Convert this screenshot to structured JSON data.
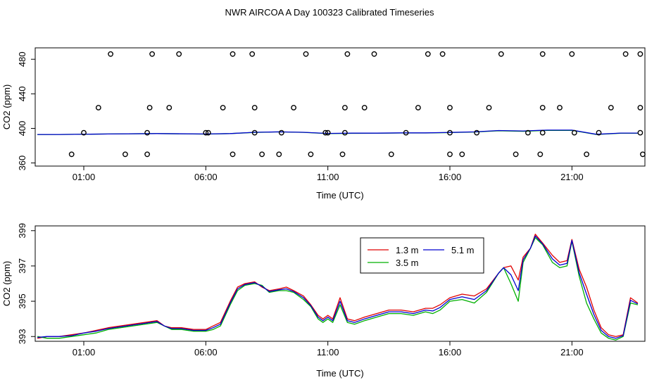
{
  "figure_title": "NWR AIRCOA A  Day 100323  Calibrated Timeseries",
  "colors": {
    "s13": "#e00000",
    "s35": "#00b000",
    "s51": "#0000d0",
    "axis": "#000000"
  },
  "chart_data": [
    {
      "type": "line",
      "id": "top",
      "title": "",
      "xlabel": "Time (UTC)",
      "ylabel": "CO2 (ppm)",
      "xlim": [
        -0.99,
        23.99
      ],
      "ylim": [
        356.4,
        493.2
      ],
      "xticks": [
        1,
        6,
        11,
        16,
        21
      ],
      "xtick_labels": [
        "01:00",
        "06:00",
        "11:00",
        "16:00",
        "21:00"
      ],
      "yticks": [
        360,
        400,
        440,
        480
      ],
      "ytick_labels": [
        "360",
        "400",
        "440",
        "480"
      ],
      "scatter_series": {
        "name": "reference",
        "x": [
          1.0,
          6.0,
          8.0,
          11.0,
          11.7,
          16.0,
          17.1,
          19.8,
          21.1,
          22.1,
          23.8,
          2.7,
          3.6,
          7.1,
          8.3,
          9.0,
          10.3,
          11.6,
          13.6,
          16.0,
          16.5,
          18.7,
          19.7,
          21.6,
          23.9,
          0.5,
          1.6,
          3.7,
          4.5,
          6.7,
          8.0,
          9.6,
          11.7,
          12.5,
          14.7,
          16.0,
          17.6,
          19.8,
          20.5,
          22.6,
          23.8,
          2.1,
          3.8,
          4.9,
          7.1,
          7.9,
          10.1,
          11.8,
          12.9,
          15.1,
          15.7,
          18.1,
          19.8,
          21.0,
          23.2,
          23.8,
          3.6,
          6.1,
          9.1,
          10.9,
          14.2,
          19.2
        ],
        "y": [
          395,
          395,
          395,
          395,
          395,
          395,
          395,
          395,
          395,
          395,
          395,
          370,
          370,
          370,
          370,
          370,
          370,
          370,
          370,
          370,
          370,
          370,
          370,
          370,
          370,
          370,
          424,
          424,
          424,
          424,
          424,
          424,
          424,
          424,
          424,
          424,
          424,
          424,
          424,
          424,
          424,
          486,
          486,
          486,
          486,
          486,
          486,
          486,
          486,
          486,
          486,
          486,
          486,
          486,
          486,
          486,
          395,
          395,
          395,
          395,
          395,
          395
        ]
      },
      "line_series": [
        {
          "name": "5.1 m",
          "color": "#0000d0",
          "x": [
            -0.9,
            0,
            2,
            4,
            6,
            7,
            8,
            9,
            10,
            11,
            12,
            13,
            14,
            15,
            16,
            17,
            18,
            19,
            20,
            21,
            22,
            23,
            23.7
          ],
          "y": [
            393,
            393,
            393.5,
            394,
            393.5,
            394,
            395.5,
            396,
            395.5,
            394.2,
            394.5,
            394.5,
            394.8,
            394.8,
            395.3,
            396,
            397.5,
            397,
            398,
            398,
            393.2,
            394.6,
            394.6
          ]
        },
        {
          "name": "3.5 m",
          "color": "#00b000",
          "x": [
            -0.9,
            0,
            2,
            4,
            6,
            7,
            8,
            9,
            10,
            11,
            12,
            13,
            14,
            15,
            16,
            17,
            18,
            19,
            20,
            21,
            22,
            23,
            23.7
          ],
          "y": [
            392.9,
            393,
            393.5,
            394,
            393.4,
            394,
            395.3,
            396,
            395.4,
            394,
            394.3,
            394.4,
            394.7,
            394.7,
            395.2,
            395.8,
            397.3,
            396.6,
            397.7,
            397.8,
            393,
            394.4,
            394.4
          ]
        }
      ]
    },
    {
      "type": "line",
      "id": "bottom",
      "title": "",
      "xlabel": "Time (UTC)",
      "ylabel": "CO2 (ppm)",
      "xlim": [
        -0.99,
        23.99
      ],
      "ylim": [
        392.73,
        399.27
      ],
      "xticks": [
        1,
        6,
        11,
        16,
        21
      ],
      "xtick_labels": [
        "01:00",
        "06:00",
        "11:00",
        "16:00",
        "21:00"
      ],
      "yticks": [
        393,
        395,
        397,
        399
      ],
      "ytick_labels": [
        "393",
        "395",
        "397",
        "399"
      ],
      "legend": {
        "location": "upper-middle",
        "entries": [
          "1.3 m",
          "5.1 m",
          "3.5 m"
        ]
      },
      "series": [
        {
          "name": "1.3 m",
          "color": "#e00000",
          "x": [
            -0.9,
            -0.5,
            0,
            0.5,
            1,
            1.5,
            2,
            2.5,
            3,
            3.5,
            4,
            4.3,
            4.6,
            5,
            5.5,
            6,
            6.3,
            6.6,
            7,
            7.3,
            7.6,
            8,
            8.3,
            8.6,
            9,
            9.3,
            9.6,
            10,
            10.3,
            10.6,
            10.8,
            11.0,
            11.2,
            11.5,
            11.8,
            12.1,
            12.5,
            13,
            13.5,
            14,
            14.5,
            15,
            15.3,
            15.6,
            16,
            16.5,
            17,
            17.5,
            18,
            18.2,
            18.5,
            18.8,
            19.0,
            19.3,
            19.5,
            19.8,
            20.2,
            20.5,
            20.8,
            21.0,
            21.3,
            21.6,
            21.9,
            22.2,
            22.5,
            22.8,
            23.1,
            23.4,
            23.7
          ],
          "y": [
            392.9,
            393.0,
            393.0,
            393.1,
            393.2,
            393.35,
            393.5,
            393.6,
            393.7,
            393.8,
            393.9,
            393.6,
            393.5,
            393.5,
            393.4,
            393.4,
            393.6,
            393.8,
            395.0,
            395.8,
            396.0,
            396.1,
            395.8,
            395.6,
            395.7,
            395.8,
            395.6,
            395.3,
            394.8,
            394.2,
            394.0,
            394.2,
            394.0,
            395.2,
            394.0,
            393.9,
            394.1,
            394.3,
            394.5,
            394.5,
            394.4,
            394.6,
            394.6,
            394.8,
            395.2,
            395.4,
            395.3,
            395.7,
            396.6,
            396.9,
            397.0,
            396.2,
            397.5,
            398.0,
            398.8,
            398.3,
            397.6,
            397.2,
            397.3,
            398.5,
            396.8,
            395.8,
            394.5,
            393.5,
            393.1,
            393.0,
            393.1,
            395.2,
            394.9
          ]
        },
        {
          "name": "3.5 m",
          "color": "#00b000",
          "x": [
            -0.9,
            -0.5,
            0,
            0.5,
            1,
            1.5,
            2,
            2.5,
            3,
            3.5,
            4,
            4.3,
            4.6,
            5,
            5.5,
            6,
            6.3,
            6.6,
            7,
            7.3,
            7.6,
            8,
            8.3,
            8.6,
            9,
            9.3,
            9.6,
            10,
            10.3,
            10.6,
            10.8,
            11.0,
            11.2,
            11.5,
            11.8,
            12.1,
            12.5,
            13,
            13.5,
            14,
            14.5,
            15,
            15.3,
            15.6,
            16,
            16.5,
            17,
            17.5,
            18,
            18.2,
            18.5,
            18.8,
            19.0,
            19.3,
            19.5,
            19.8,
            20.2,
            20.5,
            20.8,
            21.0,
            21.3,
            21.6,
            21.9,
            22.2,
            22.5,
            22.8,
            23.1,
            23.4,
            23.7
          ],
          "y": [
            393.0,
            392.9,
            392.9,
            393.0,
            393.1,
            393.2,
            393.4,
            393.5,
            393.6,
            393.7,
            393.8,
            393.6,
            393.4,
            393.4,
            393.3,
            393.3,
            393.4,
            393.6,
            394.8,
            395.6,
            395.9,
            396.0,
            395.9,
            395.5,
            395.6,
            395.6,
            395.5,
            395.1,
            394.7,
            394.0,
            393.8,
            394.0,
            393.8,
            394.8,
            393.8,
            393.7,
            393.9,
            394.1,
            394.3,
            394.3,
            394.2,
            394.4,
            394.3,
            394.5,
            395.0,
            395.1,
            394.9,
            395.5,
            396.6,
            396.9,
            396.0,
            395.0,
            397.2,
            398.0,
            398.6,
            398.2,
            397.2,
            396.9,
            397.0,
            398.4,
            396.4,
            394.9,
            394.0,
            393.2,
            392.9,
            392.8,
            393.0,
            394.9,
            394.8
          ]
        },
        {
          "name": "5.1 m",
          "color": "#0000d0",
          "x": [
            -0.9,
            -0.5,
            0,
            0.5,
            1,
            1.5,
            2,
            2.5,
            3,
            3.5,
            4,
            4.3,
            4.6,
            5,
            5.5,
            6,
            6.3,
            6.6,
            7,
            7.3,
            7.6,
            8,
            8.3,
            8.6,
            9,
            9.3,
            9.6,
            10,
            10.3,
            10.6,
            10.8,
            11.0,
            11.2,
            11.5,
            11.8,
            12.1,
            12.5,
            13,
            13.5,
            14,
            14.5,
            15,
            15.3,
            15.6,
            16,
            16.5,
            17,
            17.5,
            18,
            18.2,
            18.5,
            18.8,
            19.0,
            19.3,
            19.5,
            19.8,
            20.2,
            20.5,
            20.8,
            21.0,
            21.3,
            21.6,
            21.9,
            22.2,
            22.5,
            22.8,
            23.1,
            23.4,
            23.7
          ],
          "y": [
            392.95,
            393.0,
            393.0,
            393.05,
            393.2,
            393.3,
            393.45,
            393.55,
            393.65,
            393.75,
            393.85,
            393.6,
            393.45,
            393.45,
            393.35,
            393.35,
            393.5,
            393.7,
            394.9,
            395.7,
            395.95,
            396.05,
            395.85,
            395.55,
            395.65,
            395.7,
            395.55,
            395.2,
            394.75,
            394.1,
            393.9,
            394.1,
            393.9,
            395.0,
            393.9,
            393.8,
            394.0,
            394.2,
            394.4,
            394.4,
            394.3,
            394.5,
            394.45,
            394.65,
            395.1,
            395.25,
            395.1,
            395.6,
            396.6,
            396.9,
            396.5,
            395.6,
            397.35,
            398.0,
            398.7,
            398.25,
            397.4,
            397.05,
            397.15,
            398.45,
            396.6,
            395.4,
            394.25,
            393.35,
            393.0,
            392.9,
            393.05,
            395.05,
            394.85
          ]
        }
      ]
    }
  ]
}
